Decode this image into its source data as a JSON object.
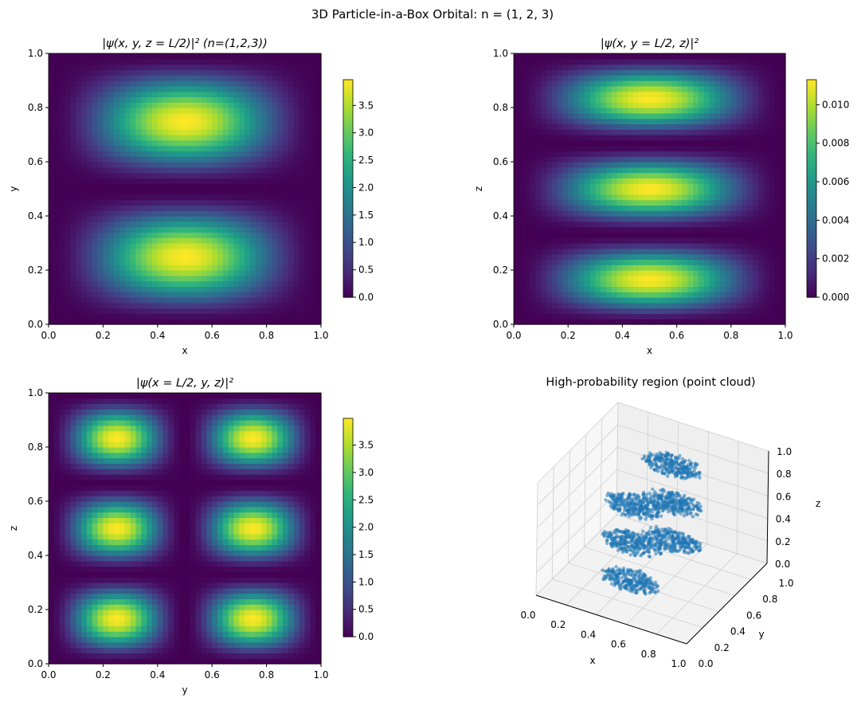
{
  "suptitle": "3D Particle-in-a-Box Orbital: n = (1, 2, 3)",
  "chart_data": [
    {
      "type": "heatmap",
      "title": "|ψ(x, y, z = L/2)|²  (n=(1,2,3))",
      "xlabel": "x",
      "ylabel": "y",
      "xlim": [
        0,
        1
      ],
      "ylim": [
        0,
        1
      ],
      "xticks": [
        "0.0",
        "0.2",
        "0.4",
        "0.6",
        "0.8",
        "1.0"
      ],
      "yticks": [
        "0.0",
        "0.2",
        "0.4",
        "0.6",
        "0.8",
        "1.0"
      ],
      "grid_cells": 50,
      "function": "sin²(1πx)·sin²(2πy)",
      "vmax": 3.97,
      "colorbar_ticks": [
        "0.0",
        "0.5",
        "1.0",
        "1.5",
        "2.0",
        "2.5",
        "3.0",
        "3.5"
      ],
      "colorbar_values": [
        0,
        0.5,
        1,
        1.5,
        2,
        2.5,
        3,
        3.5
      ],
      "colormap": "viridis"
    },
    {
      "type": "heatmap",
      "title": "|ψ(x, y = L/2, z)|²",
      "xlabel": "x",
      "ylabel": "z",
      "xlim": [
        0,
        1
      ],
      "ylim": [
        0,
        1
      ],
      "xticks": [
        "0.0",
        "0.2",
        "0.4",
        "0.6",
        "0.8",
        "1.0"
      ],
      "yticks": [
        "0.0",
        "0.2",
        "0.4",
        "0.6",
        "0.8",
        "1.0"
      ],
      "grid_cells": 50,
      "function": "sin²(1πx)·sin²(3πz)",
      "vmax": 0.0113,
      "colorbar_ticks": [
        "0.000",
        "0.002",
        "0.004",
        "0.006",
        "0.008",
        "0.010"
      ],
      "colorbar_values": [
        0,
        0.002,
        0.004,
        0.006,
        0.008,
        0.01
      ],
      "colormap": "viridis"
    },
    {
      "type": "heatmap",
      "title": "|ψ(x = L/2, y, z)|²",
      "xlabel": "y",
      "ylabel": "z",
      "xlim": [
        0,
        1
      ],
      "ylim": [
        0,
        1
      ],
      "xticks": [
        "0.0",
        "0.2",
        "0.4",
        "0.6",
        "0.8",
        "1.0"
      ],
      "yticks": [
        "0.0",
        "0.2",
        "0.4",
        "0.6",
        "0.8",
        "1.0"
      ],
      "grid_cells": 50,
      "function": "sin²(2πy)·sin²(3πz)",
      "vmax": 3.99,
      "colorbar_ticks": [
        "0.0",
        "0.5",
        "1.0",
        "1.5",
        "2.0",
        "2.5",
        "3.0",
        "3.5"
      ],
      "colorbar_values": [
        0,
        0.5,
        1,
        1.5,
        2,
        2.5,
        3,
        3.5
      ],
      "colormap": "viridis"
    },
    {
      "type": "scatter",
      "title": "High-probability region (point cloud)",
      "xlabel": "x",
      "ylabel": "y",
      "zlabel": "z",
      "xlim": [
        0,
        1
      ],
      "ylim": [
        0,
        1
      ],
      "zlim": [
        0,
        1
      ],
      "xticks": [
        "0.0",
        "0.2",
        "0.4",
        "0.6",
        "0.8",
        "1.0"
      ],
      "yticks": [
        "0.0",
        "0.2",
        "0.4",
        "0.6",
        "0.8",
        "1.0"
      ],
      "zticks": [
        "0.0",
        "0.2",
        "0.4",
        "0.6",
        "0.8",
        "1.0"
      ],
      "color": "#1f77b4",
      "clusters": [
        {
          "x": 0.5,
          "y": 0.25,
          "z": 0.1667
        },
        {
          "x": 0.5,
          "y": 0.75,
          "z": 0.1667
        },
        {
          "x": 0.5,
          "y": 0.25,
          "z": 0.5
        },
        {
          "x": 0.5,
          "y": 0.75,
          "z": 0.5
        },
        {
          "x": 0.5,
          "y": 0.25,
          "z": 0.8333
        },
        {
          "x": 0.5,
          "y": 0.75,
          "z": 0.8333
        }
      ],
      "cluster_spread": {
        "x": 0.2,
        "y": 0.1,
        "z": 0.06
      },
      "points_per_cluster": 260
    }
  ]
}
